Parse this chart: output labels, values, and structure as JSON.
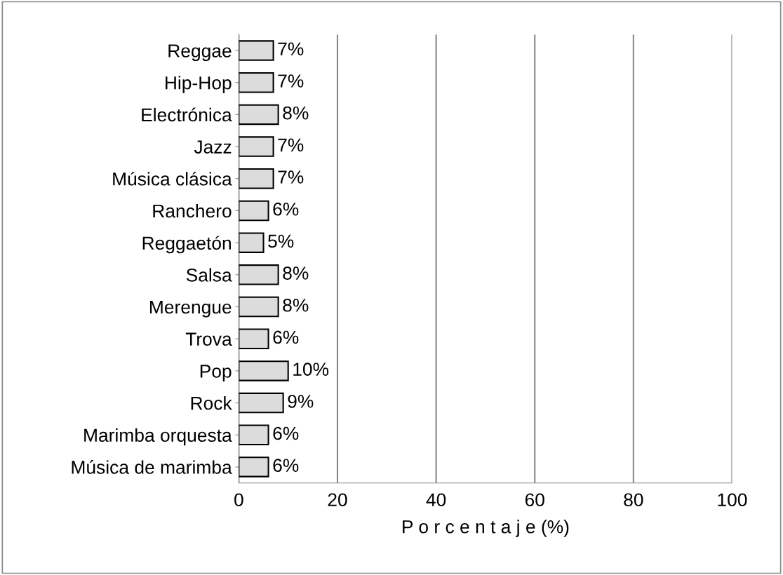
{
  "chart_data": {
    "type": "bar",
    "orientation": "horizontal",
    "xlabel": "P o r c e n t a j e (%)",
    "categories": [
      "Reggae",
      "Hip-Hop",
      "Electrónica",
      "Jazz",
      "Música clásica",
      "Ranchero",
      "Reggaetón",
      "Salsa",
      "Merengue",
      "Trova",
      "Pop",
      "Rock",
      "Marimba orquesta",
      "Música de marimba"
    ],
    "values": [
      7,
      7,
      8,
      7,
      7,
      6,
      5,
      8,
      8,
      6,
      10,
      9,
      6,
      6
    ],
    "value_labels": [
      "7%",
      "7%",
      "8%",
      "7%",
      "7%",
      "6%",
      "5%",
      "8%",
      "8%",
      "6%",
      "10%",
      "9%",
      "6%",
      "6%"
    ],
    "color": "#dcdcdc",
    "xlim": [
      0,
      100
    ],
    "xticks": [
      0,
      20,
      40,
      60,
      80,
      100
    ],
    "grid": "x"
  }
}
